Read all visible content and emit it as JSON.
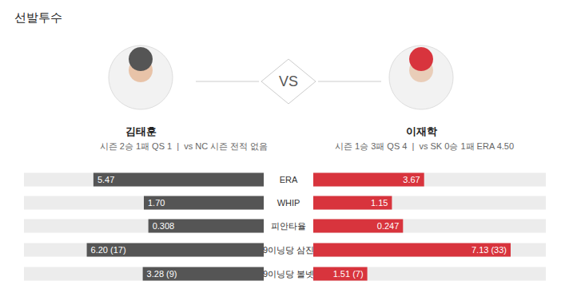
{
  "title": "선발투수",
  "vs": "VS",
  "records": [
    "시즌 2승 1패 QS 1  |  vs NC 시즌 전적 없음",
    "시즌 1승 3패 QS 4  |  vs SK 0승 1패 ERA 4.50"
  ],
  "chart_data": {
    "type": "bar",
    "orientation": "horizontal",
    "categories": [
      "ERA",
      "WHIP",
      "피안타율",
      "9이닝당 삼진",
      "9이닝당 볼넷"
    ],
    "series": [
      {
        "name": "김태훈",
        "color": "#555555",
        "values": [
          5.47,
          1.7,
          0.308,
          6.2,
          3.28
        ],
        "value_labels": [
          "5.47",
          "1.70",
          "0.308",
          "6.20 (17)",
          "3.28 (9)"
        ]
      },
      {
        "name": "이재학",
        "color": "#d8343d",
        "values": [
          3.67,
          1.15,
          0.247,
          7.13,
          1.51
        ],
        "value_labels": [
          "3.67",
          "1.15",
          "0.247",
          "7.13 (33)",
          "1.51 (7)"
        ]
      }
    ],
    "xlims": [
      [
        0,
        7.7
      ],
      [
        0,
        3.4
      ],
      [
        0,
        0.64
      ],
      [
        0,
        8.4
      ],
      [
        0,
        6.5
      ]
    ],
    "data_labels": true,
    "tick_labels": false
  }
}
